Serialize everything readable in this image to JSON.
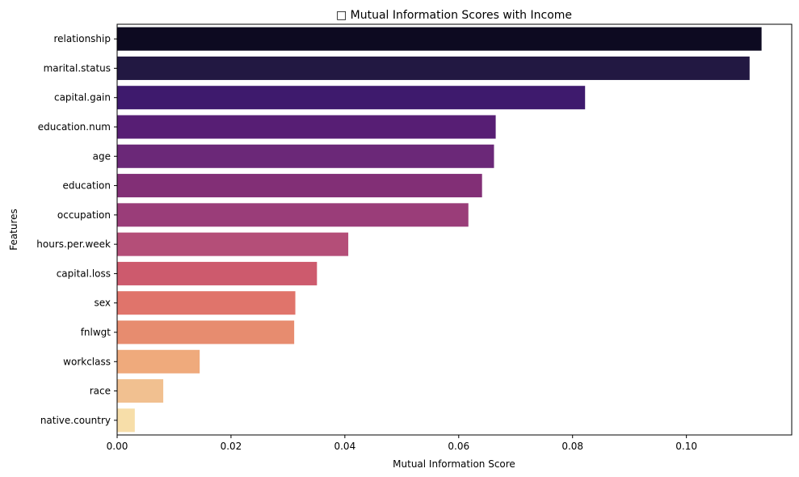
{
  "chart_data": {
    "type": "bar",
    "orientation": "horizontal",
    "title": "□ Mutual Information Scores with Income",
    "xlabel": "Mutual Information Score",
    "ylabel": "Features",
    "xlim": [
      0,
      0.1185
    ],
    "xticks": [
      0.0,
      0.02,
      0.04,
      0.06,
      0.08,
      0.1
    ],
    "xtick_labels": [
      "0.00",
      "0.02",
      "0.04",
      "0.06",
      "0.08",
      "0.10"
    ],
    "grid": false,
    "categories": [
      "relationship",
      "marital.status",
      "capital.gain",
      "education.num",
      "age",
      "education",
      "occupation",
      "hours.per.week",
      "capital.loss",
      "sex",
      "fnlwgt",
      "workclass",
      "race",
      "native.country"
    ],
    "values": [
      0.1132,
      0.1111,
      0.0822,
      0.0665,
      0.0662,
      0.0641,
      0.0617,
      0.0406,
      0.0351,
      0.0313,
      0.0311,
      0.0145,
      0.0081,
      0.0031
    ],
    "colors": [
      "#0d0a21",
      "#221842",
      "#3e1a6d",
      "#571e74",
      "#6b2878",
      "#822f76",
      "#9a3d79",
      "#b44e78",
      "#cd5a6d",
      "#e0746b",
      "#e78c6f",
      "#efaa7c",
      "#f1c090",
      "#f7dea9"
    ]
  }
}
